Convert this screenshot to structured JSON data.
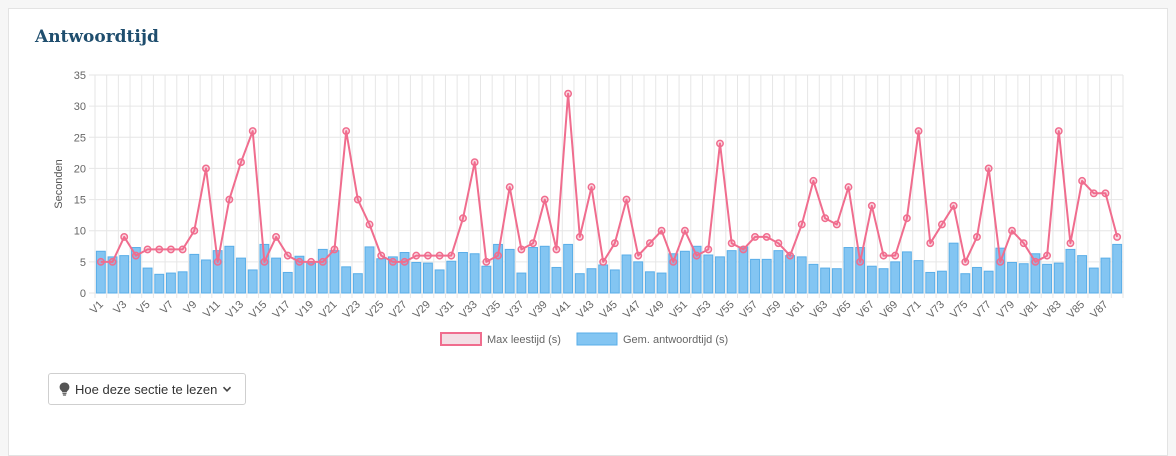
{
  "section": {
    "title": "Antwoordtijd"
  },
  "help_button": {
    "label": "Hoe deze sectie te lezen",
    "icon": "lightbulb-icon",
    "chevron": "chevron-down-icon"
  },
  "colors": {
    "bar_fill": "#83c5f2",
    "bar_border": "#5aaee8",
    "line": "#f06d8e",
    "line_fill": "#f3dfe5",
    "grid": "#e6e6e6",
    "text": "#666666",
    "title": "#1f4e6e"
  },
  "chart_data": {
    "type": "bar",
    "ylabel": "Seconden",
    "ylim": [
      0,
      35
    ],
    "yticks": [
      0,
      5,
      10,
      15,
      20,
      25,
      30,
      35
    ],
    "grid": true,
    "legend_position": "bottom",
    "categories": [
      "V1",
      "V2",
      "V3",
      "V4",
      "V5",
      "V6",
      "V7",
      "V8",
      "V9",
      "V10",
      "V11",
      "V12",
      "V13",
      "V14",
      "V15",
      "V16",
      "V17",
      "V18",
      "V19",
      "V20",
      "V21",
      "V22",
      "V23",
      "V24",
      "V25",
      "V26",
      "V27",
      "V28",
      "V29",
      "V30",
      "V31",
      "V32",
      "V33",
      "V34",
      "V35",
      "V36",
      "V37",
      "V38",
      "V39",
      "V40",
      "V41",
      "V42",
      "V43",
      "V44",
      "V45",
      "V46",
      "V47",
      "V48",
      "V49",
      "V50",
      "V51",
      "V52",
      "V53",
      "V54",
      "V55",
      "V56",
      "V57",
      "V58",
      "V59",
      "V60",
      "V61",
      "V62",
      "V63",
      "V64",
      "V65",
      "V66",
      "V67",
      "V68",
      "V69",
      "V70",
      "V71",
      "V72",
      "V73",
      "V74",
      "V75",
      "V76",
      "V77",
      "V78",
      "V79",
      "V80",
      "V81",
      "V82",
      "V83",
      "V84",
      "V85",
      "V86",
      "V87",
      "V88"
    ],
    "series": [
      {
        "name": "Max leestijd (s)",
        "type": "line",
        "values": [
          5,
          5,
          9,
          6,
          7,
          7,
          7,
          7,
          10,
          20,
          5,
          15,
          21,
          26,
          5,
          9,
          6,
          5,
          5,
          5,
          7,
          26,
          15,
          11,
          6,
          5,
          5,
          6,
          6,
          6,
          6,
          12,
          21,
          5,
          6,
          17,
          7,
          8,
          15,
          7,
          32,
          9,
          17,
          5,
          8,
          15,
          6,
          8,
          10,
          5,
          10,
          6,
          7,
          24,
          8,
          7,
          9,
          9,
          8,
          6,
          11,
          18,
          12,
          11,
          17,
          5,
          14,
          6,
          6,
          12,
          26,
          8,
          11,
          14,
          5,
          9,
          20,
          5,
          10,
          8,
          5,
          6,
          26,
          8,
          18,
          16,
          16,
          9
        ]
      },
      {
        "name": "Gem. antwoordtijd (s)",
        "type": "bar",
        "values": [
          6.7,
          5.8,
          6.0,
          7.3,
          4.0,
          3.0,
          3.2,
          3.4,
          6.2,
          5.3,
          6.8,
          7.5,
          5.6,
          3.7,
          7.8,
          5.6,
          3.3,
          5.9,
          4.8,
          7.0,
          6.8,
          4.2,
          3.1,
          7.4,
          5.5,
          5.8,
          6.5,
          4.9,
          4.8,
          3.7,
          5.1,
          6.5,
          6.3,
          4.3,
          7.8,
          7.0,
          3.2,
          7.3,
          7.5,
          4.1,
          7.8,
          3.1,
          3.9,
          4.5,
          3.7,
          6.1,
          5.0,
          3.4,
          3.2,
          6.3,
          6.7,
          7.5,
          6.1,
          5.8,
          6.8,
          7.4,
          5.4,
          5.4,
          6.8,
          6.0,
          5.8,
          4.6,
          4.0,
          3.9,
          7.3,
          7.3,
          4.3,
          3.9,
          5.0,
          6.6,
          5.2,
          3.3,
          3.5,
          8.0,
          3.1,
          4.1,
          3.5,
          7.2,
          4.9,
          4.7,
          6.3,
          4.6,
          4.8,
          7.0,
          6.0,
          4.0,
          5.6,
          7.8
        ]
      }
    ]
  }
}
